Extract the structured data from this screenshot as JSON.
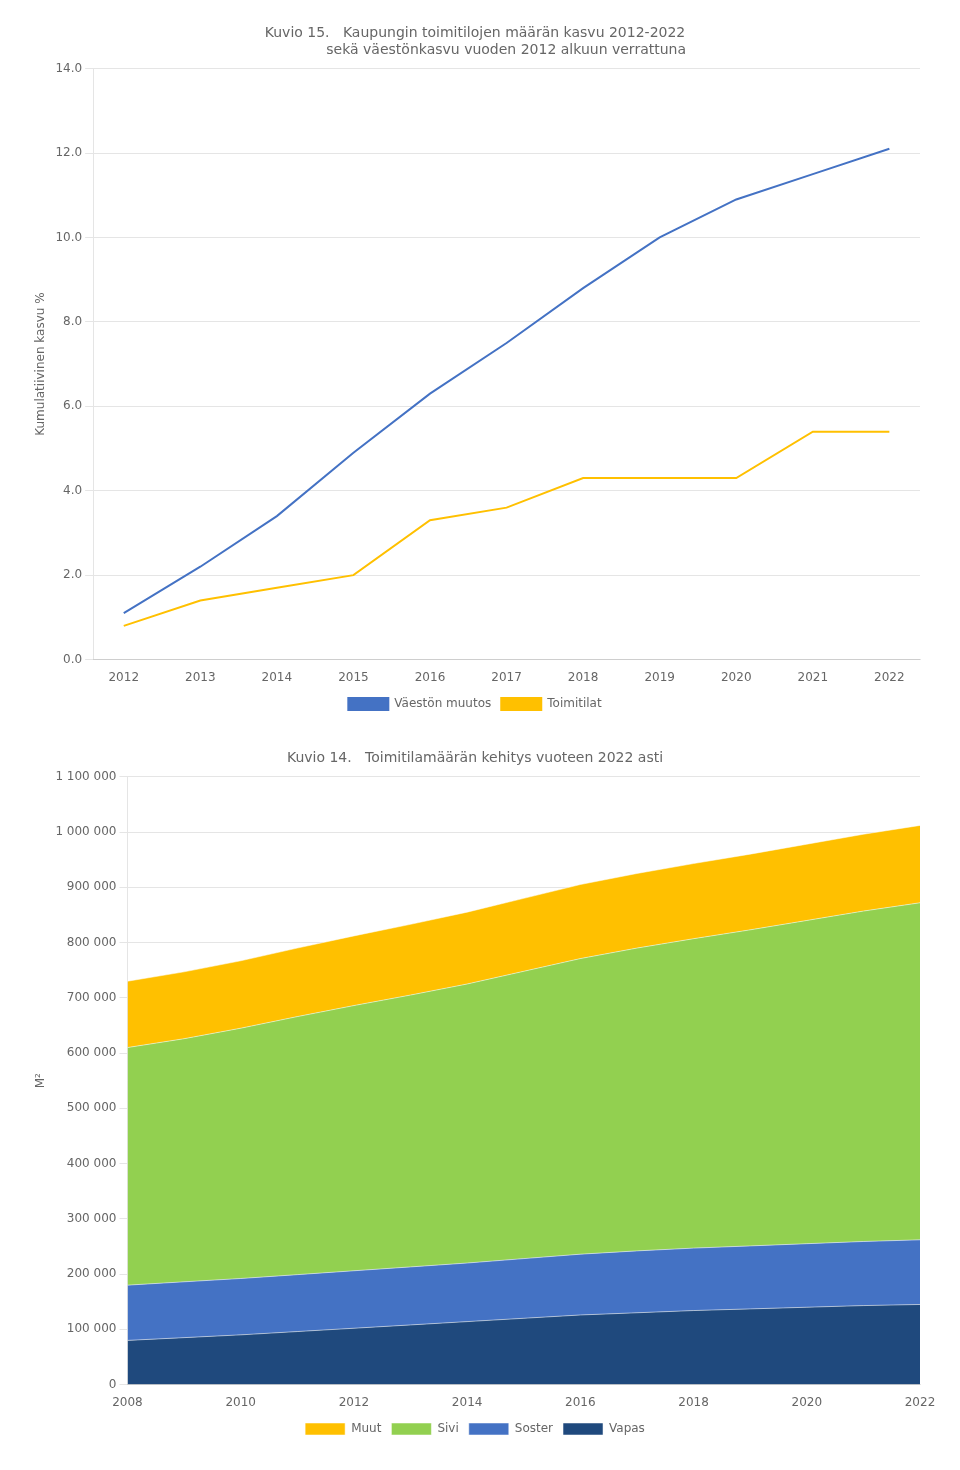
{
  "chart_data": [
    {
      "type": "line",
      "title": "Kuvio 15.   Kaupungin toimitilojen määrän kasvu 2012-2022\n              sekä väestönkasvu vuoden 2012 alkuun verrattuna",
      "ylabel": "Kumulatiivinen kasvu %",
      "x": [
        2012,
        2013,
        2014,
        2015,
        2016,
        2017,
        2018,
        2019,
        2020,
        2021,
        2022
      ],
      "xlim": [
        2011.6,
        2022.4
      ],
      "xticks": [
        2012,
        2013,
        2014,
        2015,
        2016,
        2017,
        2018,
        2019,
        2020,
        2021,
        2022
      ],
      "ylim": [
        0.0,
        14.0
      ],
      "yticks": [
        {
          "value": 0.0,
          "label": "0.0"
        },
        {
          "value": 2.0,
          "label": "2.0"
        },
        {
          "value": 4.0,
          "label": "4.0"
        },
        {
          "value": 6.0,
          "label": "6.0"
        },
        {
          "value": 8.0,
          "label": "8.0"
        },
        {
          "value": 10.0,
          "label": "10.0"
        },
        {
          "value": 12.0,
          "label": "12.0"
        },
        {
          "value": 14.0,
          "label": "14.0"
        }
      ],
      "grid": true,
      "legend": "bottom",
      "series": [
        {
          "name": "Väestön muutos",
          "color": "#4472C4",
          "values": [
            1.1,
            2.2,
            3.4,
            4.9,
            6.3,
            7.5,
            8.8,
            10.0,
            10.9,
            11.5,
            12.1
          ]
        },
        {
          "name": "Toimitilat",
          "color": "#FFC000",
          "values": [
            0.8,
            1.4,
            1.7,
            2.0,
            3.3,
            3.6,
            4.3,
            4.3,
            4.3,
            5.4,
            5.4
          ]
        }
      ]
    },
    {
      "type": "area",
      "title": "Kuvio 14.   Toimitilamäärän kehitys vuoteen 2022 asti",
      "ylabel": "M²",
      "stacked": true,
      "x": [
        2008,
        2009,
        2010,
        2011,
        2012,
        2013,
        2014,
        2015,
        2016,
        2017,
        2018,
        2019,
        2020,
        2021,
        2022
      ],
      "xlim": [
        2008,
        2022
      ],
      "xticks": [
        2008,
        2010,
        2012,
        2014,
        2016,
        2018,
        2020,
        2022
      ],
      "ylim": [
        0,
        1100000
      ],
      "yticks": [
        0,
        {
          "value": 100000,
          "label": "100 000"
        },
        {
          "value": 200000,
          "label": "200 000"
        },
        {
          "value": 300000,
          "label": "300 000"
        },
        {
          "value": 400000,
          "label": "400 000"
        },
        {
          "value": 500000,
          "label": "500 000"
        },
        {
          "value": 600000,
          "label": "600 000"
        },
        {
          "value": 700000,
          "label": "700 000"
        },
        {
          "value": 800000,
          "label": "800 000"
        },
        {
          "value": 900000,
          "label": "900 000"
        },
        {
          "value": 1000000,
          "label": "1 000 000"
        },
        {
          "value": 1100000,
          "label": "1 100 000"
        }
      ],
      "grid": true,
      "legend": "bottom",
      "series": [
        {
          "name": "Muut",
          "color": "#FFC000",
          "values": [
            120000,
            121000,
            122000,
            124000,
            126000,
            128000,
            130000,
            132000,
            134000,
            135000,
            136000,
            137000,
            138000,
            139000,
            140000
          ]
        },
        {
          "name": "Sivi",
          "color": "#92D050",
          "values": [
            430000,
            440000,
            453000,
            467000,
            480000,
            492000,
            505000,
            520000,
            535000,
            548000,
            560000,
            572000,
            585000,
            598000,
            610000
          ]
        },
        {
          "name": "Soster",
          "color": "#4472C4",
          "values": [
            100000,
            101000,
            102000,
            103000,
            104000,
            105000,
            106000,
            108000,
            110000,
            112000,
            113000,
            114000,
            115000,
            116000,
            117000
          ]
        },
        {
          "name": "Vapas",
          "color": "#1F497D",
          "values": [
            80000,
            85000,
            90000,
            96000,
            102000,
            108000,
            114000,
            120000,
            126000,
            130000,
            134000,
            137000,
            140000,
            143000,
            145000
          ]
        }
      ]
    }
  ]
}
